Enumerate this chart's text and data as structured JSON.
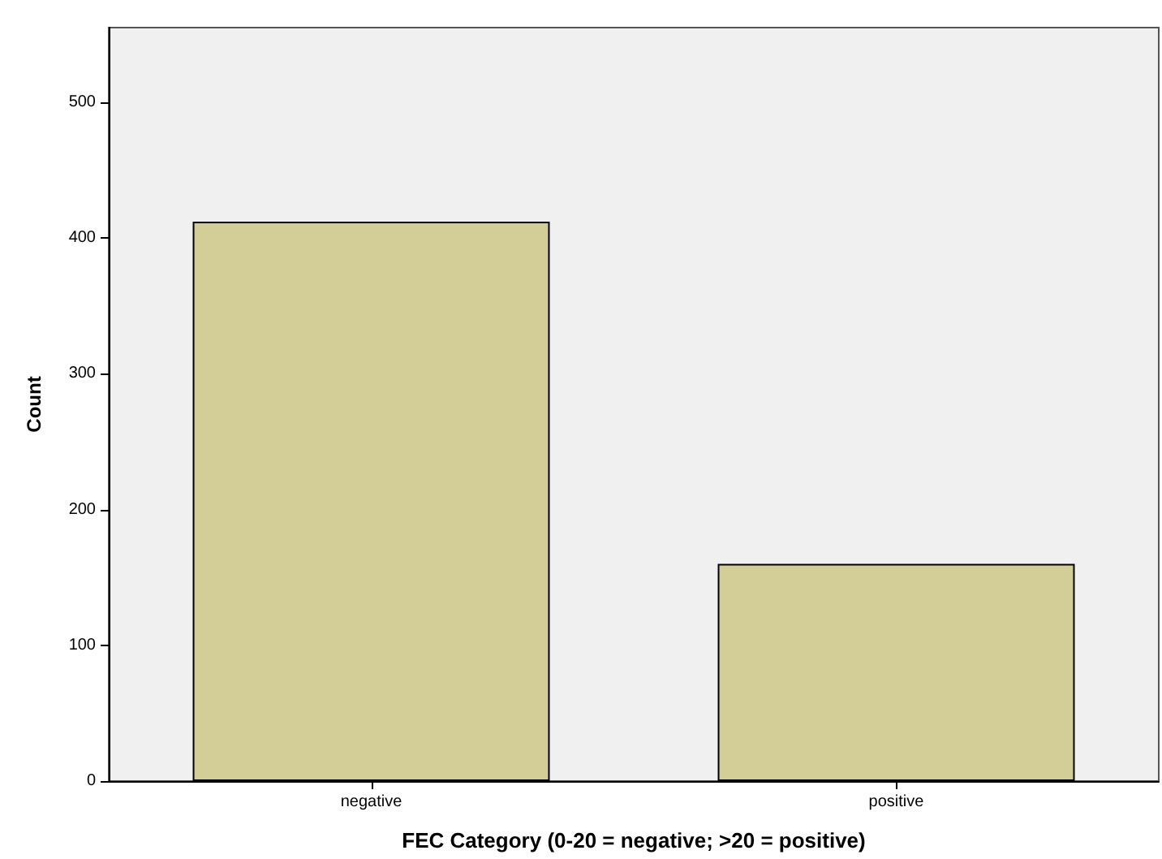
{
  "chart_data": {
    "type": "bar",
    "xlabel": "FEC Category (0-20 = negative; >20 = positive)",
    "ylabel": "Count",
    "categories": [
      "negative",
      "positive"
    ],
    "values": [
      412,
      160
    ],
    "color": "#d3ce97",
    "ylim": [
      0,
      555
    ],
    "yticks": [
      0,
      100,
      200,
      300,
      400,
      500
    ],
    "grid": false
  }
}
